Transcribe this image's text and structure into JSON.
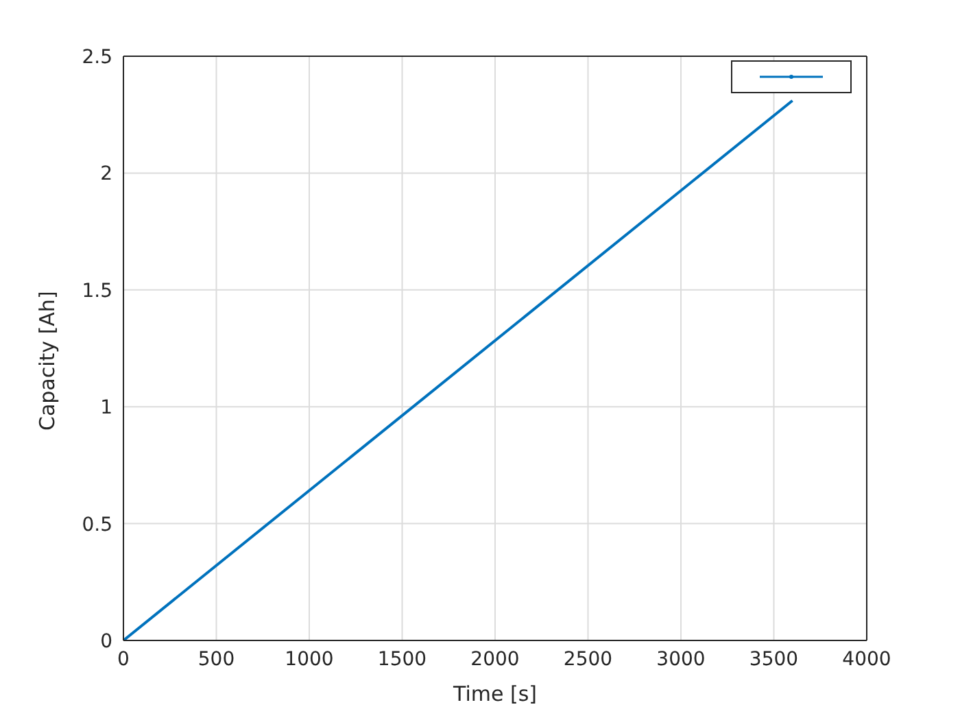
{
  "chart_data": {
    "type": "line",
    "xlabel": "Time [s]",
    "ylabel": "Capacity [Ah]",
    "xlim": [
      0,
      4000
    ],
    "xticks": [
      0,
      500,
      1000,
      1500,
      2000,
      2500,
      3000,
      3500,
      4000
    ],
    "ylim": [
      0,
      2.5
    ],
    "yticks": [
      0,
      0.5,
      1,
      1.5,
      2,
      2.5
    ],
    "grid": true,
    "series": [
      {
        "color": "#0072bd",
        "x": [
          0,
          3600
        ],
        "values": [
          0,
          2.31
        ]
      }
    ]
  }
}
